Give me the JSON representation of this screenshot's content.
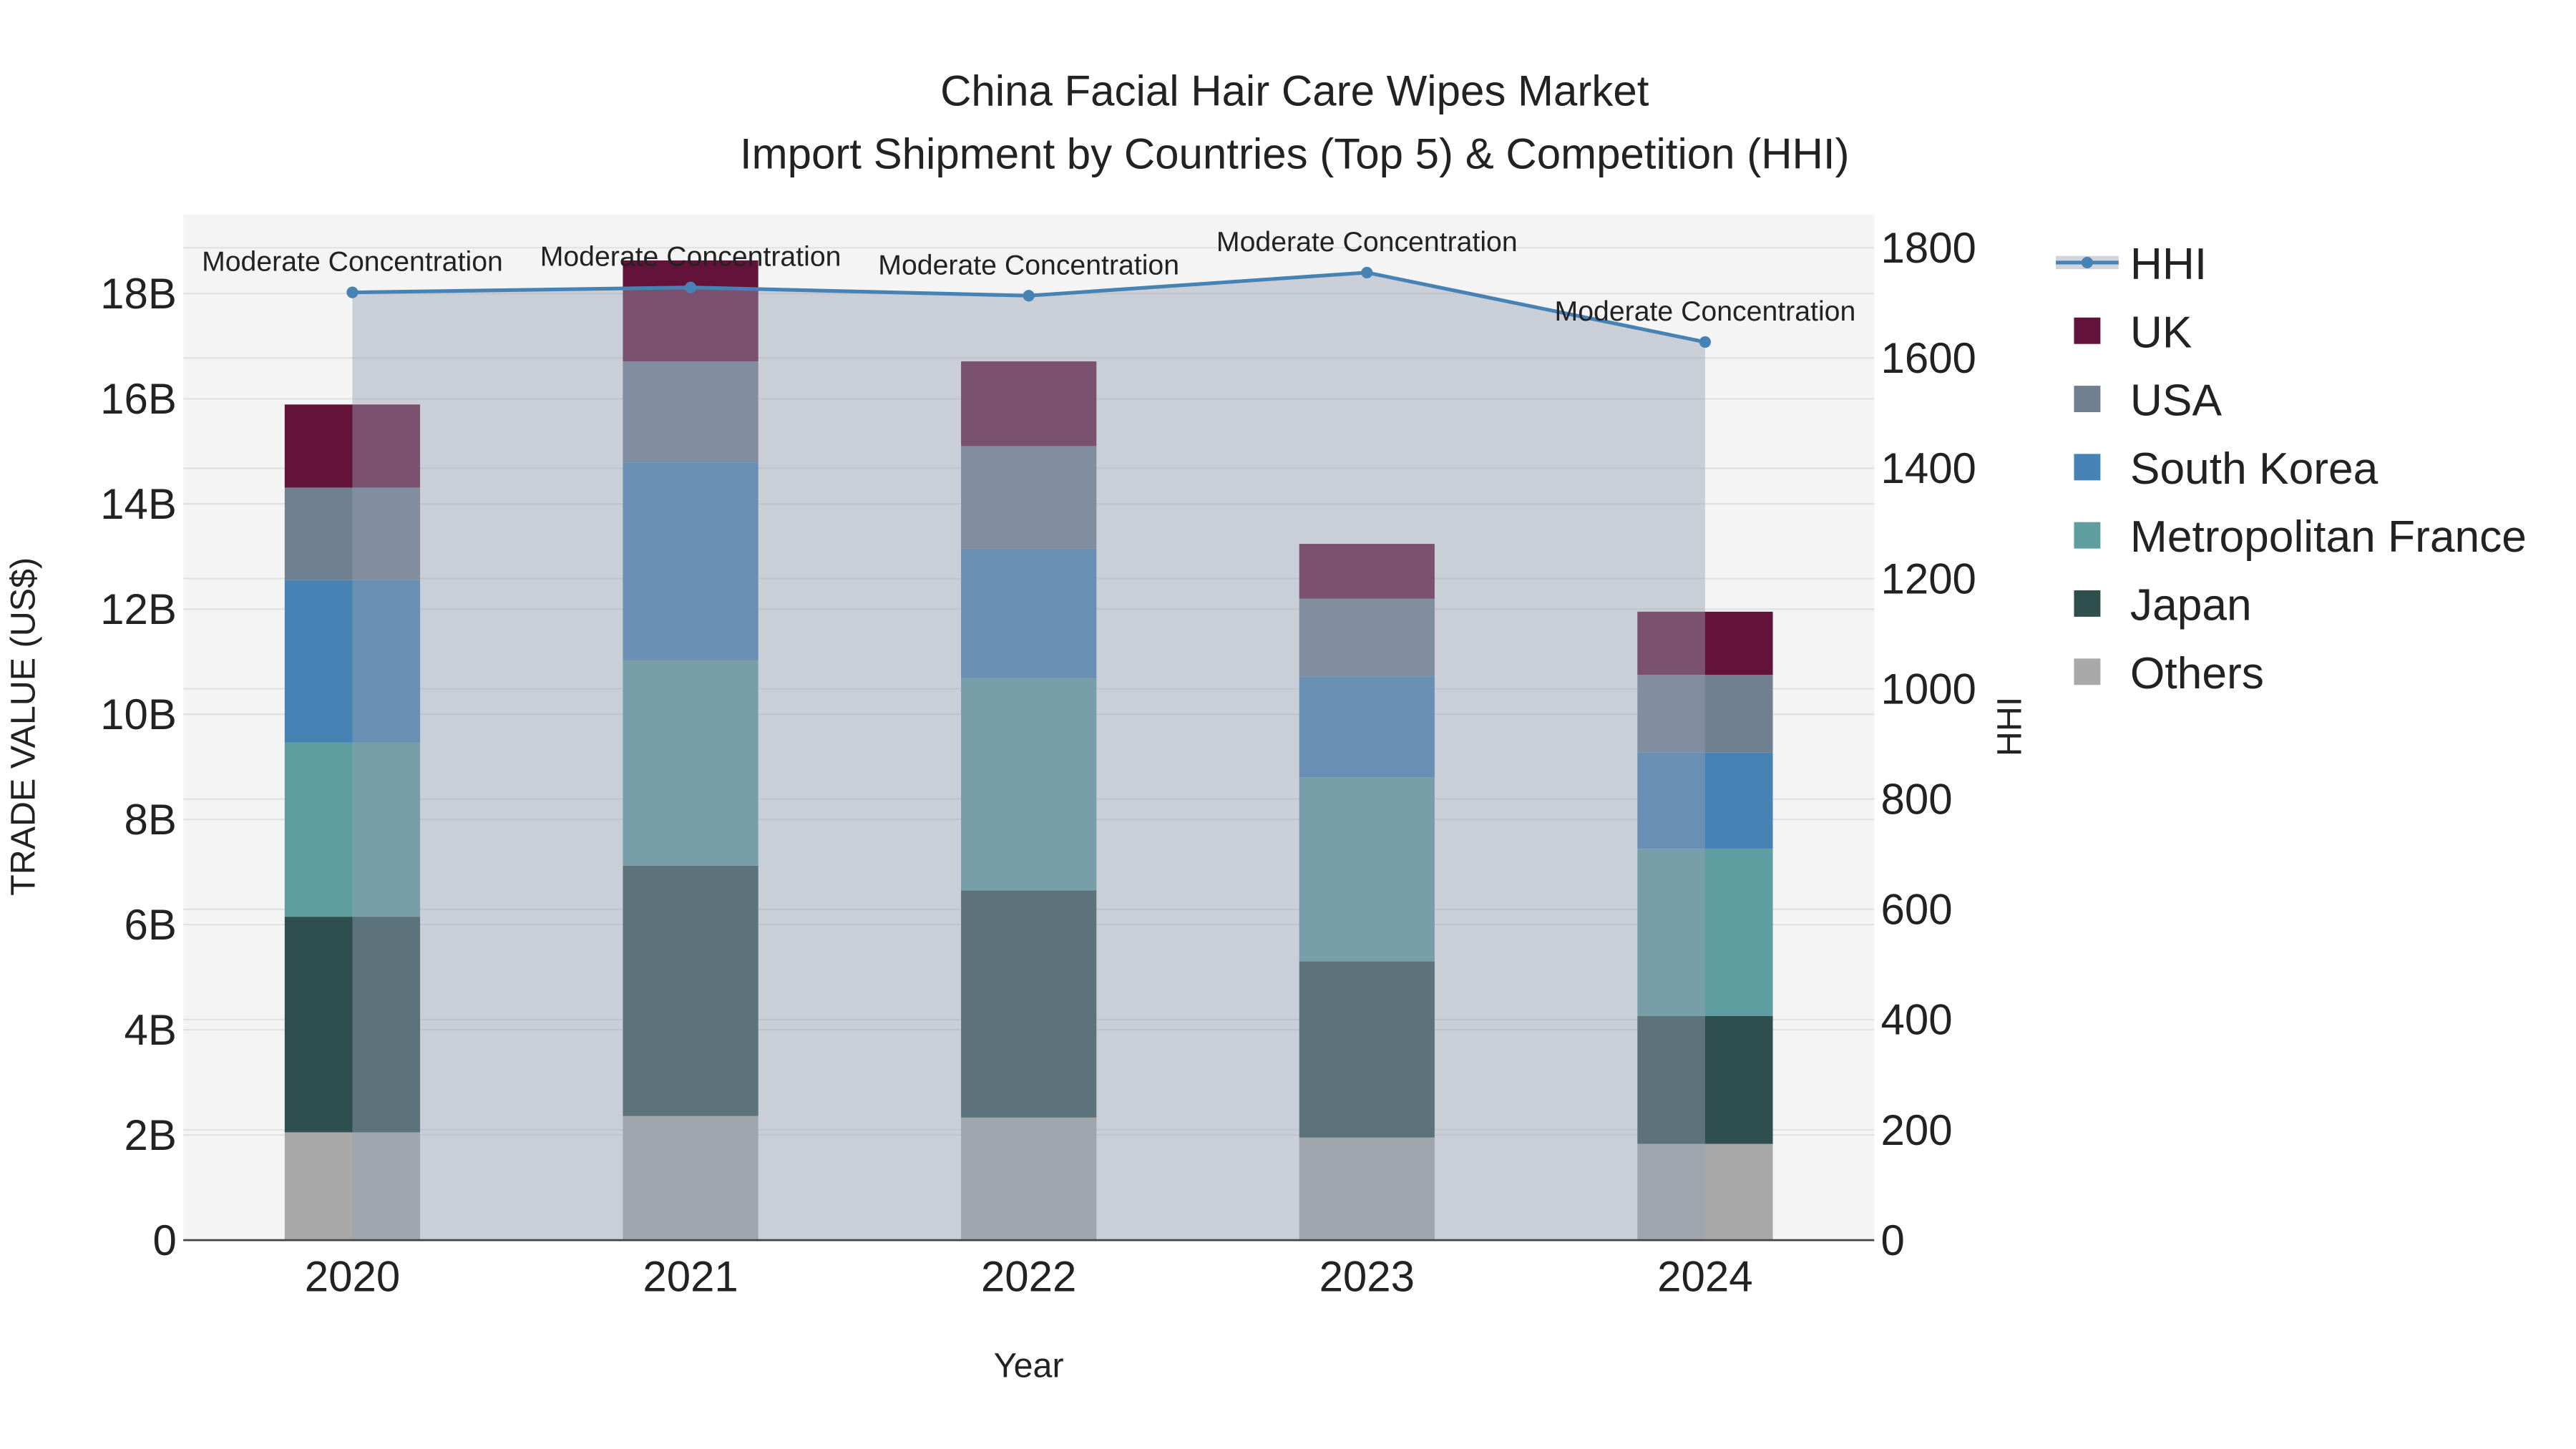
{
  "chart_data": {
    "type": "bar",
    "stacked": true,
    "title_line1": "China Facial Hair Care Wipes Market",
    "title_line2": "Import Shipment by Countries (Top 5) & Competition (HHI)",
    "xlabel": "Year",
    "ylabel": "TRADE VALUE (US$)",
    "y2label": "HHI",
    "categories": [
      "2020",
      "2021",
      "2022",
      "2023",
      "2024"
    ],
    "ylim": [
      0,
      19.5
    ],
    "y_ticks": [
      0,
      2,
      4,
      6,
      8,
      10,
      12,
      14,
      16,
      18
    ],
    "y_tick_labels": [
      "0",
      "2B",
      "4B",
      "6B",
      "8B",
      "10B",
      "12B",
      "14B",
      "16B",
      "18B"
    ],
    "y2lim": [
      0,
      1860
    ],
    "y2_ticks": [
      0,
      200,
      400,
      600,
      800,
      1000,
      1200,
      1400,
      1600,
      1800
    ],
    "y2_tick_labels": [
      "0",
      "200",
      "400",
      "600",
      "800",
      "1000",
      "1200",
      "1400",
      "1600",
      "1800"
    ],
    "unit": "billion US$",
    "series": [
      {
        "name": "Others",
        "color": "#a9a9a9",
        "values": [
          2.05,
          2.36,
          2.33,
          1.95,
          1.83
        ]
      },
      {
        "name": "Japan",
        "color": "#2f4f4f",
        "values": [
          4.1,
          4.76,
          4.32,
          3.35,
          2.43
        ]
      },
      {
        "name": "Metropolitan France",
        "color": "#5f9ea0",
        "values": [
          3.31,
          3.91,
          4.04,
          3.5,
          3.18
        ]
      },
      {
        "name": "South Korea",
        "color": "#4682b4",
        "values": [
          3.09,
          3.76,
          2.46,
          1.92,
          1.83
        ]
      },
      {
        "name": "USA",
        "color": "#708090",
        "values": [
          1.76,
          1.92,
          1.95,
          1.48,
          1.48
        ]
      },
      {
        "name": "UK",
        "color": "#63133a",
        "values": [
          1.58,
          1.92,
          1.61,
          1.04,
          1.2
        ]
      }
    ],
    "hhi": {
      "name": "HHI",
      "color": "#4682b4",
      "values": [
        1719,
        1728,
        1713,
        1755,
        1629
      ],
      "annotations": [
        "Moderate Concentration",
        "Moderate Concentration",
        "Moderate Concentration",
        "Moderate Concentration",
        "Moderate Concentration"
      ]
    },
    "legend_order": [
      "HHI",
      "UK",
      "USA",
      "South Korea",
      "Metropolitan France",
      "Japan",
      "Others"
    ],
    "legend_placement": "right",
    "grid": true
  }
}
